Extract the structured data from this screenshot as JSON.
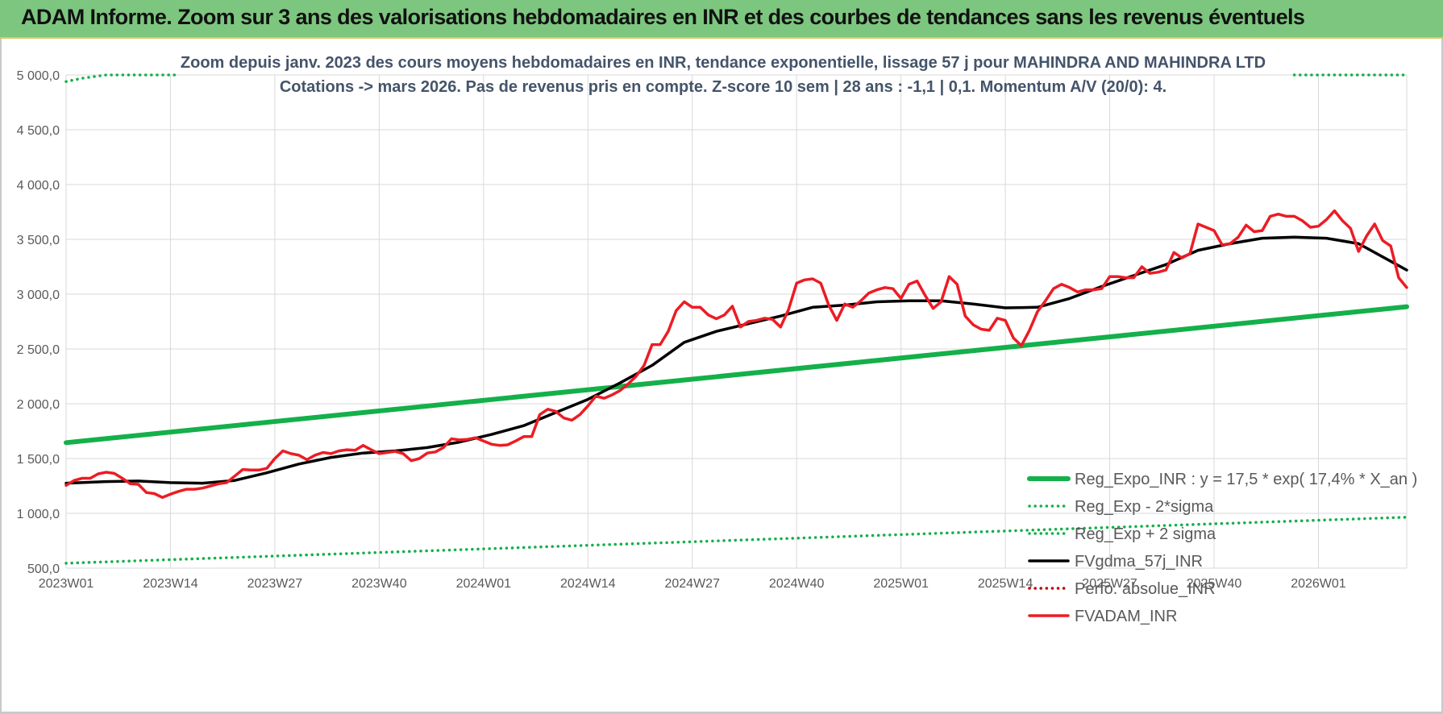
{
  "header": {
    "banner_title": "ADAM Informe. Zoom sur 3 ans des valorisations hebdomadaires en INR et des courbes de tendances sans les revenus éventuels"
  },
  "colors": {
    "banner_bg": "#7dc67f",
    "reg_expo": "#14b04a",
    "fvgdma": "#000000",
    "fvadam": "#ec1c24",
    "perfo": "#c00000",
    "grid": "#d9d9d9",
    "axis_text": "#595959",
    "title_text": "#44546a"
  },
  "chart_data": {
    "type": "line",
    "title": "Zoom depuis janv. 2023 des cours moyens hebdomadaires en INR, tendance exponentielle, lissage 57 j pour MAHINDRA AND MAHINDRA LTD",
    "subtitle": "Cotations -> mars 2026. Pas de revenus pris en compte. Z-score 10 sem | 28 ans : -1,1 | 0,1. Momentum A/V (20/0): 4.",
    "xlabel": "",
    "ylabel": "",
    "ylim": [
      500,
      5000
    ],
    "yticks": [
      500,
      1000,
      1500,
      2000,
      2500,
      3000,
      3500,
      4000,
      4500,
      5000
    ],
    "ytick_labels": [
      "500,0",
      "1 000,0",
      "1 500,0",
      "2 000,0",
      "2 500,0",
      "3 000,0",
      "3 500,0",
      "4 000,0",
      "4 500,0",
      "5 000,0"
    ],
    "x_count": 168,
    "xtick_index": [
      0,
      13,
      26,
      39,
      52,
      65,
      78,
      91,
      104,
      117,
      130,
      143,
      156
    ],
    "xtick_labels": [
      "2023W01",
      "2023W14",
      "2023W27",
      "2023W40",
      "2024W01",
      "2024W14",
      "2024W27",
      "2024W40",
      "2025W01",
      "2025W14",
      "2025W27",
      "2025W40",
      "2026W01"
    ],
    "legend_position": "bottom-right",
    "series": [
      {
        "name": "Reg_Expo_INR : y = 17,5 * exp( 17,4% *  X_an )",
        "style": "solid-thick",
        "color": "#14b04a",
        "points": [
          [
            0,
            1645
          ],
          [
            167,
            2885
          ]
        ]
      },
      {
        "name": "Reg_Exp - 2*sigma",
        "style": "dotted",
        "color": "#14b04a",
        "points": [
          [
            0,
            545
          ],
          [
            167,
            965
          ]
        ]
      },
      {
        "name": "Reg_Exp + 2 sigma",
        "style": "dotted",
        "color": "#14b04a",
        "points": [
          [
            0,
            4940
          ],
          [
            2,
            4970
          ],
          [
            5,
            5000
          ],
          [
            14,
            5000
          ]
        ],
        "points_2": [
          [
            153,
            5000
          ],
          [
            167,
            5000
          ]
        ]
      },
      {
        "name": "FVgdma_57j_INR",
        "style": "solid",
        "color": "#000000",
        "points": [
          [
            0,
            1275
          ],
          [
            5,
            1290
          ],
          [
            9,
            1295
          ],
          [
            13,
            1280
          ],
          [
            17,
            1275
          ],
          [
            21,
            1300
          ],
          [
            25,
            1370
          ],
          [
            29,
            1450
          ],
          [
            33,
            1510
          ],
          [
            37,
            1550
          ],
          [
            41,
            1570
          ],
          [
            45,
            1600
          ],
          [
            49,
            1650
          ],
          [
            53,
            1720
          ],
          [
            57,
            1800
          ],
          [
            61,
            1920
          ],
          [
            65,
            2040
          ],
          [
            69,
            2190
          ],
          [
            73,
            2350
          ],
          [
            77,
            2560
          ],
          [
            81,
            2660
          ],
          [
            85,
            2730
          ],
          [
            89,
            2800
          ],
          [
            93,
            2880
          ],
          [
            97,
            2900
          ],
          [
            101,
            2930
          ],
          [
            105,
            2940
          ],
          [
            109,
            2940
          ],
          [
            113,
            2910
          ],
          [
            117,
            2875
          ],
          [
            121,
            2880
          ],
          [
            125,
            2960
          ],
          [
            129,
            3070
          ],
          [
            133,
            3170
          ],
          [
            137,
            3270
          ],
          [
            141,
            3400
          ],
          [
            145,
            3460
          ],
          [
            149,
            3510
          ],
          [
            153,
            3520
          ],
          [
            157,
            3510
          ],
          [
            161,
            3460
          ],
          [
            165,
            3300
          ],
          [
            167,
            3220
          ]
        ]
      },
      {
        "name": "Perfo. absolue_INR",
        "style": "dotted",
        "color": "#c00000",
        "points": []
      },
      {
        "name": "FVADAM_INR",
        "style": "solid",
        "color": "#ec1c24",
        "points": [
          [
            0,
            1255
          ],
          [
            1,
            1300
          ],
          [
            2,
            1320
          ],
          [
            3,
            1320
          ],
          [
            4,
            1360
          ],
          [
            5,
            1375
          ],
          [
            6,
            1365
          ],
          [
            7,
            1320
          ],
          [
            8,
            1270
          ],
          [
            9,
            1265
          ],
          [
            10,
            1190
          ],
          [
            11,
            1180
          ],
          [
            12,
            1145
          ],
          [
            13,
            1175
          ],
          [
            14,
            1200
          ],
          [
            15,
            1220
          ],
          [
            16,
            1220
          ],
          [
            17,
            1230
          ],
          [
            18,
            1250
          ],
          [
            19,
            1270
          ],
          [
            20,
            1280
          ],
          [
            21,
            1340
          ],
          [
            22,
            1400
          ],
          [
            23,
            1395
          ],
          [
            24,
            1395
          ],
          [
            25,
            1410
          ],
          [
            26,
            1500
          ],
          [
            27,
            1570
          ],
          [
            28,
            1545
          ],
          [
            29,
            1530
          ],
          [
            30,
            1490
          ],
          [
            31,
            1530
          ],
          [
            32,
            1555
          ],
          [
            33,
            1545
          ],
          [
            34,
            1570
          ],
          [
            35,
            1580
          ],
          [
            36,
            1575
          ],
          [
            37,
            1620
          ],
          [
            38,
            1580
          ],
          [
            39,
            1545
          ],
          [
            40,
            1555
          ],
          [
            41,
            1565
          ],
          [
            42,
            1545
          ],
          [
            43,
            1480
          ],
          [
            44,
            1500
          ],
          [
            45,
            1550
          ],
          [
            46,
            1560
          ],
          [
            47,
            1600
          ],
          [
            48,
            1680
          ],
          [
            49,
            1670
          ],
          [
            50,
            1675
          ],
          [
            51,
            1690
          ],
          [
            52,
            1660
          ],
          [
            53,
            1630
          ],
          [
            54,
            1620
          ],
          [
            55,
            1625
          ],
          [
            56,
            1660
          ],
          [
            57,
            1700
          ],
          [
            58,
            1700
          ],
          [
            59,
            1900
          ],
          [
            60,
            1950
          ],
          [
            61,
            1930
          ],
          [
            62,
            1870
          ],
          [
            63,
            1850
          ],
          [
            64,
            1900
          ],
          [
            65,
            1980
          ],
          [
            66,
            2070
          ],
          [
            67,
            2050
          ],
          [
            68,
            2080
          ],
          [
            69,
            2120
          ],
          [
            70,
            2180
          ],
          [
            71,
            2250
          ],
          [
            72,
            2350
          ],
          [
            73,
            2540
          ],
          [
            74,
            2540
          ],
          [
            75,
            2660
          ],
          [
            76,
            2850
          ],
          [
            77,
            2930
          ],
          [
            78,
            2880
          ],
          [
            79,
            2880
          ],
          [
            80,
            2810
          ],
          [
            81,
            2775
          ],
          [
            82,
            2810
          ],
          [
            83,
            2890
          ],
          [
            84,
            2700
          ],
          [
            85,
            2750
          ],
          [
            86,
            2760
          ],
          [
            87,
            2780
          ],
          [
            88,
            2770
          ],
          [
            89,
            2700
          ],
          [
            90,
            2860
          ],
          [
            91,
            3100
          ],
          [
            92,
            3130
          ],
          [
            93,
            3140
          ],
          [
            94,
            3100
          ],
          [
            95,
            2900
          ],
          [
            96,
            2760
          ],
          [
            97,
            2910
          ],
          [
            98,
            2880
          ],
          [
            99,
            2940
          ],
          [
            100,
            3010
          ],
          [
            101,
            3040
          ],
          [
            102,
            3060
          ],
          [
            103,
            3050
          ],
          [
            104,
            2960
          ],
          [
            105,
            3090
          ],
          [
            106,
            3120
          ],
          [
            107,
            2990
          ],
          [
            108,
            2870
          ],
          [
            109,
            2930
          ],
          [
            110,
            3160
          ],
          [
            111,
            3090
          ],
          [
            112,
            2800
          ],
          [
            113,
            2720
          ],
          [
            114,
            2680
          ],
          [
            115,
            2670
          ],
          [
            116,
            2780
          ],
          [
            117,
            2760
          ],
          [
            118,
            2600
          ],
          [
            119,
            2530
          ],
          [
            120,
            2670
          ],
          [
            121,
            2840
          ],
          [
            122,
            2940
          ],
          [
            123,
            3050
          ],
          [
            124,
            3090
          ],
          [
            125,
            3060
          ],
          [
            126,
            3020
          ],
          [
            127,
            3040
          ],
          [
            128,
            3040
          ],
          [
            129,
            3050
          ],
          [
            130,
            3160
          ],
          [
            131,
            3160
          ],
          [
            132,
            3150
          ],
          [
            133,
            3150
          ],
          [
            134,
            3250
          ],
          [
            135,
            3190
          ],
          [
            136,
            3200
          ],
          [
            137,
            3220
          ],
          [
            138,
            3380
          ],
          [
            139,
            3330
          ],
          [
            140,
            3370
          ],
          [
            141,
            3640
          ],
          [
            142,
            3610
          ],
          [
            143,
            3580
          ],
          [
            144,
            3450
          ],
          [
            145,
            3460
          ],
          [
            146,
            3520
          ],
          [
            147,
            3630
          ],
          [
            148,
            3570
          ],
          [
            149,
            3580
          ],
          [
            150,
            3710
          ],
          [
            151,
            3730
          ],
          [
            152,
            3710
          ],
          [
            153,
            3710
          ],
          [
            154,
            3670
          ],
          [
            155,
            3610
          ],
          [
            156,
            3620
          ],
          [
            157,
            3680
          ],
          [
            158,
            3760
          ],
          [
            159,
            3670
          ],
          [
            160,
            3600
          ],
          [
            161,
            3390
          ],
          [
            162,
            3530
          ],
          [
            163,
            3640
          ],
          [
            164,
            3490
          ],
          [
            165,
            3440
          ],
          [
            166,
            3150
          ],
          [
            167,
            3060
          ]
        ]
      }
    ]
  }
}
